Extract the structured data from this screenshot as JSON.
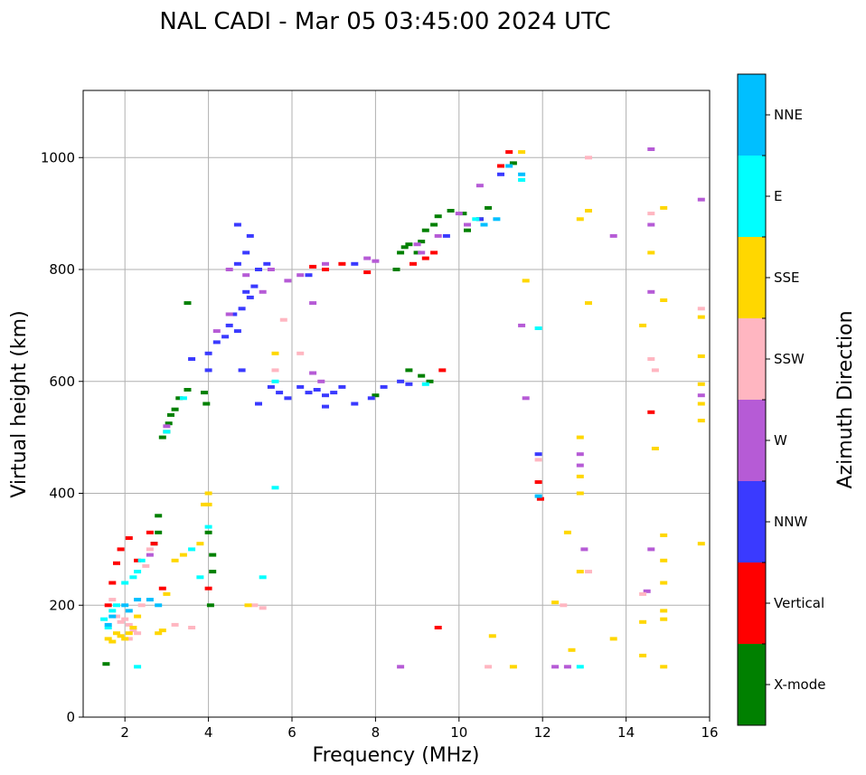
{
  "chart_data": {
    "type": "scatter",
    "title": "NAL CADI - Mar 05 03:45:00 2024 UTC",
    "xlabel": "Frequency (MHz)",
    "ylabel": "Virtual height (km)",
    "xlim": [
      1,
      16
    ],
    "ylim": [
      0,
      1120
    ],
    "xticks": [
      "2",
      "4",
      "6",
      "8",
      "10",
      "12",
      "14",
      "16"
    ],
    "xtick_values": [
      2,
      4,
      6,
      8,
      10,
      12,
      14,
      16
    ],
    "yticks": [
      "0",
      "200",
      "400",
      "600",
      "800",
      "1000"
    ],
    "ytick_values": [
      0,
      200,
      400,
      600,
      800,
      1000
    ],
    "grid": true,
    "colorbar": {
      "label": "Azimuth Direction",
      "categories": [
        "X-mode",
        "Vertical",
        "NNW",
        "W",
        "SSW",
        "SSE",
        "E",
        "NNE"
      ],
      "colors": [
        "#008000",
        "#ff0000",
        "#3a3aff",
        "#b65bd6",
        "#ffb6c1",
        "#ffd700",
        "#00ffff",
        "#00bfff"
      ]
    },
    "series": [
      {
        "name": "X-mode",
        "points": [
          [
            1.55,
            95
          ],
          [
            2.7,
            310
          ],
          [
            2.8,
            330
          ],
          [
            2.8,
            360
          ],
          [
            2.9,
            500
          ],
          [
            3.0,
            510
          ],
          [
            3.05,
            525
          ],
          [
            3.1,
            540
          ],
          [
            3.2,
            550
          ],
          [
            3.3,
            570
          ],
          [
            3.5,
            585
          ],
          [
            3.5,
            740
          ],
          [
            3.9,
            580
          ],
          [
            3.95,
            560
          ],
          [
            4.05,
            200
          ],
          [
            4.1,
            260
          ],
          [
            4.1,
            290
          ],
          [
            4.0,
            330
          ],
          [
            8.5,
            800
          ],
          [
            8.6,
            830
          ],
          [
            8.7,
            840
          ],
          [
            8.8,
            845
          ],
          [
            9.0,
            830
          ],
          [
            9.1,
            850
          ],
          [
            9.2,
            870
          ],
          [
            9.4,
            880
          ],
          [
            9.5,
            895
          ],
          [
            9.8,
            905
          ],
          [
            10.1,
            900
          ],
          [
            10.2,
            870
          ],
          [
            10.5,
            890
          ],
          [
            10.7,
            910
          ],
          [
            11.3,
            990
          ],
          [
            9.3,
            600
          ],
          [
            9.1,
            610
          ],
          [
            8.8,
            620
          ],
          [
            8.0,
            575
          ]
        ]
      },
      {
        "name": "Vertical",
        "points": [
          [
            1.6,
            200
          ],
          [
            1.7,
            240
          ],
          [
            1.8,
            275
          ],
          [
            1.9,
            300
          ],
          [
            2.1,
            320
          ],
          [
            2.3,
            280
          ],
          [
            2.6,
            330
          ],
          [
            2.7,
            310
          ],
          [
            2.9,
            230
          ],
          [
            6.5,
            805
          ],
          [
            6.8,
            800
          ],
          [
            7.2,
            810
          ],
          [
            7.8,
            795
          ],
          [
            8.9,
            810
          ],
          [
            9.2,
            820
          ],
          [
            9.4,
            830
          ],
          [
            9.6,
            620
          ],
          [
            11.0,
            985
          ],
          [
            11.2,
            1010
          ],
          [
            11.9,
            420
          ],
          [
            11.95,
            390
          ],
          [
            14.6,
            545
          ],
          [
            4.0,
            230
          ],
          [
            9.5,
            160
          ]
        ]
      },
      {
        "name": "NNW",
        "points": [
          [
            3.6,
            640
          ],
          [
            4.0,
            650
          ],
          [
            4.0,
            620
          ],
          [
            4.2,
            670
          ],
          [
            4.4,
            680
          ],
          [
            4.5,
            700
          ],
          [
            4.6,
            720
          ],
          [
            4.7,
            690
          ],
          [
            4.8,
            730
          ],
          [
            4.9,
            760
          ],
          [
            5.0,
            750
          ],
          [
            5.1,
            770
          ],
          [
            4.7,
            810
          ],
          [
            4.9,
            830
          ],
          [
            5.2,
            800
          ],
          [
            4.7,
            880
          ],
          [
            5.0,
            860
          ],
          [
            5.4,
            810
          ],
          [
            5.5,
            590
          ],
          [
            5.7,
            580
          ],
          [
            5.9,
            570
          ],
          [
            6.2,
            590
          ],
          [
            6.4,
            580
          ],
          [
            6.6,
            585
          ],
          [
            6.8,
            575
          ],
          [
            7.0,
            580
          ],
          [
            7.2,
            590
          ],
          [
            7.5,
            560
          ],
          [
            7.9,
            570
          ],
          [
            8.2,
            590
          ],
          [
            8.6,
            600
          ],
          [
            8.8,
            595
          ],
          [
            4.8,
            620
          ],
          [
            5.2,
            560
          ],
          [
            6.8,
            555
          ],
          [
            11.0,
            970
          ],
          [
            10.5,
            890
          ],
          [
            9.7,
            860
          ],
          [
            11.9,
            470
          ],
          [
            7.5,
            810
          ],
          [
            6.4,
            790
          ]
        ]
      },
      {
        "name": "W",
        "points": [
          [
            4.2,
            690
          ],
          [
            4.5,
            720
          ],
          [
            4.5,
            800
          ],
          [
            4.9,
            790
          ],
          [
            5.3,
            760
          ],
          [
            5.5,
            800
          ],
          [
            5.9,
            780
          ],
          [
            6.2,
            790
          ],
          [
            6.5,
            740
          ],
          [
            6.8,
            810
          ],
          [
            7.8,
            820
          ],
          [
            8.0,
            815
          ],
          [
            9.0,
            845
          ],
          [
            9.1,
            830
          ],
          [
            9.5,
            860
          ],
          [
            10.0,
            900
          ],
          [
            10.2,
            880
          ],
          [
            10.5,
            950
          ],
          [
            11.5,
            700
          ],
          [
            11.6,
            570
          ],
          [
            12.3,
            90
          ],
          [
            12.6,
            90
          ],
          [
            12.9,
            470
          ],
          [
            12.9,
            450
          ],
          [
            13.0,
            300
          ],
          [
            13.7,
            860
          ],
          [
            14.6,
            880
          ],
          [
            14.6,
            760
          ],
          [
            14.6,
            300
          ],
          [
            14.5,
            225
          ],
          [
            14.6,
            1015
          ],
          [
            15.8,
            925
          ],
          [
            15.8,
            575
          ],
          [
            8.6,
            90
          ],
          [
            6.7,
            600
          ],
          [
            6.5,
            615
          ],
          [
            2.6,
            290
          ],
          [
            3.0,
            520
          ]
        ]
      },
      {
        "name": "SSW",
        "points": [
          [
            1.7,
            210
          ],
          [
            1.8,
            180
          ],
          [
            1.9,
            170
          ],
          [
            2.0,
            175
          ],
          [
            2.1,
            165
          ],
          [
            2.2,
            155
          ],
          [
            2.3,
            150
          ],
          [
            2.1,
            140
          ],
          [
            2.4,
            200
          ],
          [
            2.5,
            270
          ],
          [
            2.6,
            300
          ],
          [
            3.2,
            165
          ],
          [
            3.6,
            160
          ],
          [
            5.1,
            200
          ],
          [
            5.3,
            195
          ],
          [
            5.6,
            620
          ],
          [
            5.8,
            710
          ],
          [
            6.2,
            650
          ],
          [
            11.9,
            460
          ],
          [
            12.5,
            200
          ],
          [
            13.1,
            260
          ],
          [
            13.1,
            1000
          ],
          [
            14.4,
            220
          ],
          [
            14.6,
            640
          ],
          [
            14.6,
            900
          ],
          [
            14.7,
            620
          ],
          [
            15.8,
            730
          ],
          [
            10.7,
            90
          ]
        ]
      },
      {
        "name": "SSE",
        "points": [
          [
            1.6,
            140
          ],
          [
            1.7,
            135
          ],
          [
            1.8,
            150
          ],
          [
            1.9,
            145
          ],
          [
            2.0,
            140
          ],
          [
            2.1,
            150
          ],
          [
            2.2,
            160
          ],
          [
            2.3,
            180
          ],
          [
            2.8,
            150
          ],
          [
            2.9,
            155
          ],
          [
            3.0,
            220
          ],
          [
            3.2,
            280
          ],
          [
            3.4,
            290
          ],
          [
            3.8,
            310
          ],
          [
            3.9,
            380
          ],
          [
            4.0,
            400
          ],
          [
            4.0,
            380
          ],
          [
            4.95,
            200
          ],
          [
            5.6,
            650
          ],
          [
            10.8,
            145
          ],
          [
            11.3,
            90
          ],
          [
            11.5,
            1010
          ],
          [
            11.6,
            780
          ],
          [
            12.3,
            205
          ],
          [
            12.6,
            330
          ],
          [
            12.7,
            120
          ],
          [
            12.9,
            890
          ],
          [
            12.9,
            500
          ],
          [
            12.9,
            430
          ],
          [
            12.9,
            400
          ],
          [
            12.9,
            260
          ],
          [
            13.1,
            905
          ],
          [
            13.1,
            740
          ],
          [
            13.7,
            140
          ],
          [
            14.4,
            700
          ],
          [
            14.4,
            170
          ],
          [
            14.4,
            110
          ],
          [
            14.6,
            830
          ],
          [
            14.7,
            480
          ],
          [
            14.9,
            745
          ],
          [
            14.9,
            910
          ],
          [
            14.9,
            325
          ],
          [
            14.9,
            280
          ],
          [
            14.9,
            240
          ],
          [
            14.9,
            190
          ],
          [
            14.9,
            175
          ],
          [
            14.9,
            90
          ],
          [
            15.8,
            715
          ],
          [
            15.8,
            645
          ],
          [
            15.8,
            595
          ],
          [
            15.8,
            560
          ],
          [
            15.8,
            530
          ],
          [
            15.8,
            310
          ]
        ]
      },
      {
        "name": "E",
        "points": [
          [
            1.5,
            175
          ],
          [
            1.6,
            160
          ],
          [
            1.7,
            190
          ],
          [
            1.8,
            200
          ],
          [
            2.0,
            240
          ],
          [
            2.2,
            250
          ],
          [
            2.3,
            260
          ],
          [
            2.4,
            280
          ],
          [
            2.3,
            90
          ],
          [
            3.6,
            300
          ],
          [
            3.8,
            250
          ],
          [
            4.0,
            340
          ],
          [
            5.3,
            250
          ],
          [
            5.6,
            410
          ],
          [
            5.6,
            600
          ],
          [
            11.5,
            960
          ],
          [
            11.9,
            695
          ],
          [
            12.9,
            90
          ],
          [
            10.4,
            890
          ],
          [
            9.2,
            595
          ],
          [
            3.4,
            570
          ],
          [
            3.0,
            510
          ]
        ]
      },
      {
        "name": "NNE",
        "points": [
          [
            1.6,
            165
          ],
          [
            1.7,
            180
          ],
          [
            2.0,
            200
          ],
          [
            2.1,
            190
          ],
          [
            2.3,
            210
          ],
          [
            2.6,
            210
          ],
          [
            2.8,
            200
          ],
          [
            10.6,
            880
          ],
          [
            11.2,
            985
          ],
          [
            11.5,
            970
          ],
          [
            11.9,
            395
          ],
          [
            10.9,
            890
          ]
        ]
      }
    ]
  }
}
